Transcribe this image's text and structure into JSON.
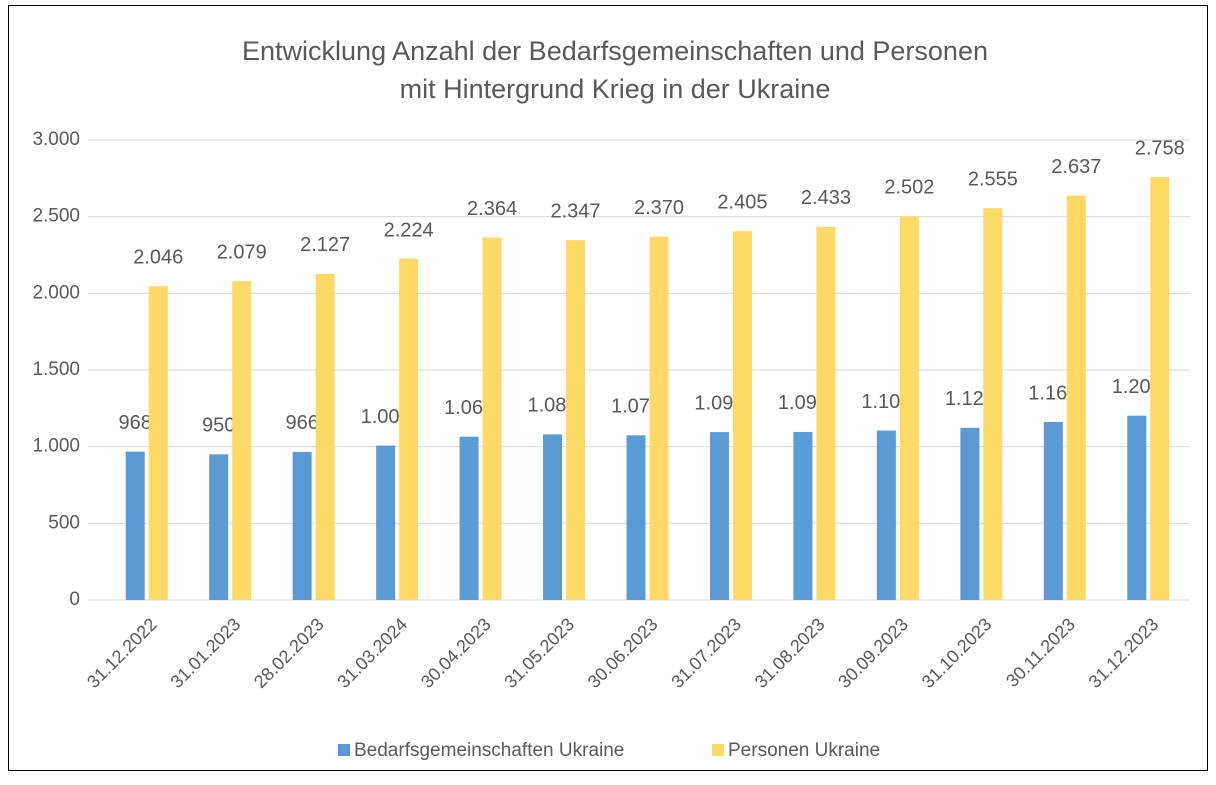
{
  "chart_data": {
    "type": "bar",
    "title": [
      "Entwicklung Anzahl der Bedarfsgemeinschaften und Personen",
      "mit Hintergrund Krieg in der Ukraine"
    ],
    "categories": [
      "31.12.2022",
      "31.01.2023",
      "28.02.2023",
      "31.03.2024",
      "30.04.2023",
      "31.05.2023",
      "30.06.2023",
      "31.07.2023",
      "31.08.2023",
      "30.09.2023",
      "31.10.2023",
      "30.11.2023",
      "31.12.2023"
    ],
    "series": [
      {
        "name": "Bedarfsgemeinschaften Ukraine",
        "color": "#5b9bd5",
        "values": [
          968,
          950,
          966,
          1007,
          1065,
          1080,
          1074,
          1095,
          1096,
          1105,
          1123,
          1161,
          1202
        ],
        "value_labels": [
          "968",
          "950",
          "966",
          "1.007",
          "1.065",
          "1.080",
          "1.074",
          "1.095",
          "1.096",
          "1.105",
          "1.123",
          "1.161",
          "1.202"
        ]
      },
      {
        "name": "Personen Ukraine",
        "color": "#ffd966",
        "values": [
          2046,
          2079,
          2127,
          2224,
          2364,
          2347,
          2370,
          2405,
          2433,
          2502,
          2555,
          2637,
          2758
        ],
        "value_labels": [
          "2.046",
          "2.079",
          "2.127",
          "2.224",
          "2.364",
          "2.347",
          "2.370",
          "2.405",
          "2.433",
          "2.502",
          "2.555",
          "2.637",
          "2.758"
        ]
      }
    ],
    "ylim": [
      0,
      3000
    ],
    "yticks": [
      0,
      500,
      {
        "value": 1000,
        "label": "1.000"
      },
      {
        "value": 1500,
        "label": "1.500"
      },
      {
        "value": 2000,
        "label": "2.000"
      },
      {
        "value": 2500,
        "label": "2.500"
      },
      {
        "value": 3000,
        "label": "3.000"
      }
    ],
    "grid": true,
    "legend": "bottom"
  }
}
